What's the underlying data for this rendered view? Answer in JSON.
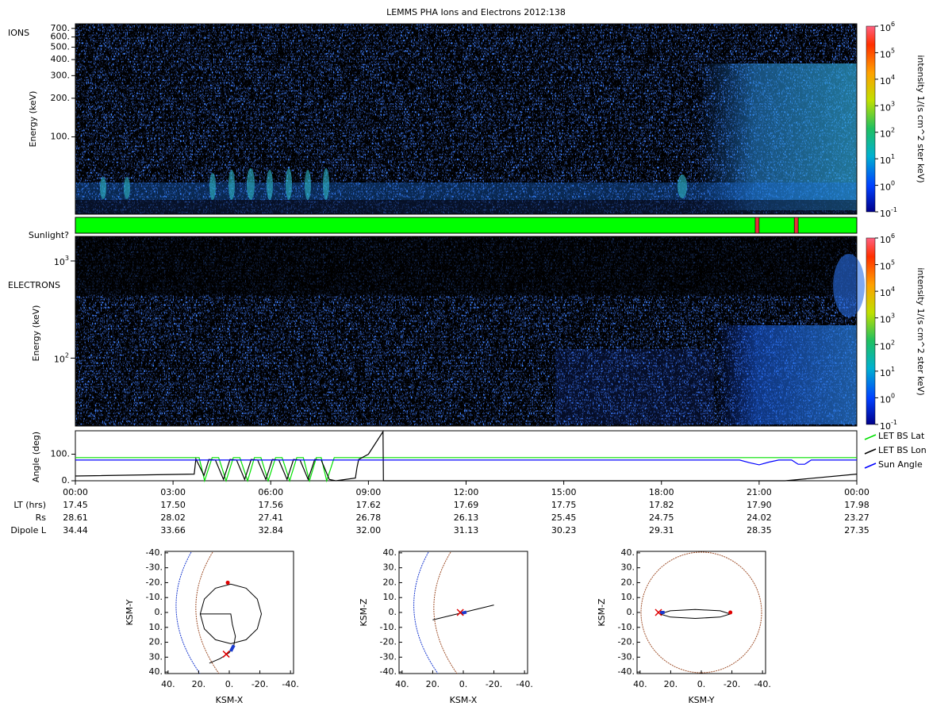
{
  "title": "LEMMS PHA Ions and Electrons  2012:138",
  "xlim": [
    0,
    24
  ],
  "time_ticks": [
    {
      "value": 0,
      "label": "00:00"
    },
    {
      "value": 3,
      "label": "03:00"
    },
    {
      "value": 6,
      "label": "06:00"
    },
    {
      "value": 9,
      "label": "09:00"
    },
    {
      "value": 12,
      "label": "12:00"
    },
    {
      "value": 15,
      "label": "15:00"
    },
    {
      "value": 18,
      "label": "18:00"
    },
    {
      "value": 21,
      "label": "21:00"
    },
    {
      "value": 24,
      "label": "00:00"
    }
  ],
  "ions": {
    "label": "IONS",
    "ylabel": "Energy (keV)",
    "ylim": [
      25,
      760
    ],
    "log_scale": true,
    "yticks": [
      {
        "value": 100,
        "label": "100."
      },
      {
        "value": 200,
        "label": "200."
      },
      {
        "value": 300,
        "label": "300."
      },
      {
        "value": 400,
        "label": "400."
      },
      {
        "value": 500,
        "label": "500."
      },
      {
        "value": 600,
        "label": "600."
      },
      {
        "value": 700,
        "label": "700."
      }
    ]
  },
  "sunlight": {
    "label": "Sunlight?",
    "color": "#00ff00",
    "eclipse_color": "#e8303a",
    "eclipses": [
      [
        20.88,
        21.0
      ],
      [
        22.08,
        22.2
      ]
    ]
  },
  "electrons": {
    "label": "ELECTRONS",
    "ylabel": "Energy (keV)",
    "ylim": [
      20,
      1790
    ],
    "log_scale": true,
    "ytick_base": "10",
    "ytick_exponents": [
      2,
      3
    ]
  },
  "colorbar": {
    "label": "intensity 1/(s cm^2 ster keV)",
    "base": "10",
    "exponents": [
      -1,
      0,
      1,
      2,
      3,
      4,
      5,
      6
    ]
  },
  "angles": {
    "ylabel": "Angle (deg)",
    "ylim": [
      0,
      188
    ],
    "yticks": [
      {
        "value": 0,
        "label": "0."
      },
      {
        "value": 100,
        "label": "100."
      }
    ],
    "series": [
      {
        "name": "LET BS Lat",
        "color": "#00e000",
        "x": [
          0,
          3.8,
          3.97,
          4.2,
          4.4,
          4.63,
          4.85,
          5.05,
          5.29,
          5.5,
          5.7,
          5.92,
          6.15,
          6.35,
          6.58,
          6.8,
          7.0,
          7.19,
          7.4,
          7.55,
          7.72,
          7.95,
          24
        ],
        "values": [
          87,
          87,
          0,
          87,
          87,
          0,
          87,
          87,
          0,
          87,
          87,
          0,
          87,
          87,
          0,
          87,
          87,
          0,
          87,
          87,
          0,
          87,
          87
        ]
      },
      {
        "name": "LET BS Lon",
        "color": "#000000",
        "x": [
          0,
          3.65,
          3.7,
          3.95,
          4.1,
          4.3,
          4.55,
          4.75,
          4.95,
          5.2,
          5.4,
          5.6,
          5.85,
          6.05,
          6.25,
          6.5,
          6.7,
          6.9,
          7.15,
          7.35,
          7.55,
          7.8,
          8.0,
          8.6,
          8.65,
          8.7,
          9.0,
          9.45,
          9.46,
          21.8,
          24
        ],
        "values": [
          18,
          25,
          82,
          20,
          80,
          78,
          5,
          80,
          78,
          5,
          80,
          78,
          5,
          80,
          78,
          5,
          80,
          78,
          5,
          80,
          78,
          5,
          0,
          10,
          50,
          80,
          100,
          185,
          0,
          0,
          25
        ]
      },
      {
        "name": "Sun Angle",
        "color": "#0000ff",
        "x": [
          0,
          20.4,
          20.7,
          21.0,
          21.3,
          21.6,
          22.0,
          22.2,
          22.4,
          22.6,
          24
        ],
        "values": [
          78,
          78,
          68,
          60,
          70,
          78,
          78,
          62,
          62,
          78,
          78
        ]
      }
    ]
  },
  "ephemeris": [
    {
      "label": "LT (hrs)",
      "values": [
        "17.45",
        "17.50",
        "17.56",
        "17.62",
        "17.69",
        "17.75",
        "17.82",
        "17.90",
        "17.98"
      ]
    },
    {
      "label": "Rs",
      "values": [
        "28.61",
        "28.02",
        "27.41",
        "26.78",
        "26.13",
        "25.45",
        "24.75",
        "24.02",
        "23.27"
      ]
    },
    {
      "label": "Dipole L",
      "values": [
        "34.44",
        "33.66",
        "32.84",
        "32.00",
        "31.13",
        "30.23",
        "29.31",
        "28.35",
        "27.35"
      ]
    }
  ],
  "orbits": [
    {
      "xlabel": "KSM-X",
      "ylabel": "KSM-Y",
      "xlim": [
        42,
        -42
      ],
      "ylim": [
        41,
        -41
      ],
      "xticks": [
        {
          "value": 40,
          "label": "40."
        },
        {
          "value": 20,
          "label": "20."
        },
        {
          "value": 0,
          "label": "0."
        },
        {
          "value": -20,
          "label": "-20."
        },
        {
          "value": -40,
          "label": "-40."
        }
      ],
      "yticks": [
        {
          "value": -40,
          "label": "-40."
        },
        {
          "value": -30,
          "label": "-30."
        },
        {
          "value": -20,
          "label": "-20."
        },
        {
          "value": -10,
          "label": "-10."
        },
        {
          "value": 0,
          "label": "0."
        },
        {
          "value": 10,
          "label": "10."
        },
        {
          "value": 20,
          "label": "20."
        },
        {
          "value": 30,
          "label": "30."
        },
        {
          "value": 40,
          "label": "40."
        }
      ],
      "path": {
        "x": [
          19,
          16.3,
          9,
          -1,
          -11,
          -18.3,
          -21,
          -18.3,
          -11,
          -1,
          9,
          16.3,
          19,
          -1,
          -2,
          -4,
          -3,
          0,
          6,
          13
        ],
        "y": [
          1,
          11,
          18.3,
          21,
          18.3,
          11,
          1,
          -9,
          -16.3,
          -19,
          -16.3,
          -9,
          1,
          1,
          8,
          16,
          22,
          27,
          31,
          34
        ]
      },
      "recent": {
        "x": [
          -1,
          -3
        ],
        "y": [
          26,
          22
        ]
      },
      "start": [
        1,
        -20
      ],
      "end": [
        2,
        28
      ]
    },
    {
      "xlabel": "KSM-X",
      "ylabel": "KSM-Z",
      "xlim": [
        42,
        -42
      ],
      "ylim": [
        -41,
        41
      ],
      "xticks": [
        {
          "value": 40,
          "label": "40."
        },
        {
          "value": 20,
          "label": "20."
        },
        {
          "value": 0,
          "label": "0."
        },
        {
          "value": -20,
          "label": "-20."
        },
        {
          "value": -40,
          "label": "-40."
        }
      ],
      "yticks": [
        {
          "value": 40,
          "label": "40."
        },
        {
          "value": 30,
          "label": "30."
        },
        {
          "value": 20,
          "label": "20."
        },
        {
          "value": 10,
          "label": "10."
        },
        {
          "value": 0,
          "label": "0."
        },
        {
          "value": -10,
          "label": "-10."
        },
        {
          "value": -20,
          "label": "-20."
        },
        {
          "value": -30,
          "label": "-30."
        },
        {
          "value": -40,
          "label": "-40."
        }
      ],
      "path": {
        "x": [
          20,
          -20
        ],
        "y": [
          -5,
          5
        ]
      },
      "recent": {
        "x": [
          1,
          -2
        ],
        "y": [
          -0.5,
          0.2
        ]
      },
      "end": [
        2,
        0
      ]
    },
    {
      "xlabel": "KSM-Y",
      "ylabel": "KSM-Z",
      "xlim": [
        42,
        -42
      ],
      "ylim": [
        -41,
        41
      ],
      "xticks": [
        {
          "value": -40,
          "label": "-40."
        },
        {
          "value": -20,
          "label": "-20."
        },
        {
          "value": 0,
          "label": "0."
        },
        {
          "value": 20,
          "label": "20."
        },
        {
          "value": 40,
          "label": "40."
        }
      ],
      "yticks": [
        {
          "value": 40,
          "label": "40."
        },
        {
          "value": 30,
          "label": "30."
        },
        {
          "value": 20,
          "label": "20."
        },
        {
          "value": 10,
          "label": "10."
        },
        {
          "value": 0,
          "label": "0."
        },
        {
          "value": -10,
          "label": "-10."
        },
        {
          "value": -20,
          "label": "-20."
        },
        {
          "value": -30,
          "label": "-30."
        },
        {
          "value": -40,
          "label": "-40."
        }
      ],
      "path": {
        "x": [
          27,
          20.3,
          4,
          -12.3,
          -19,
          -12.3,
          4,
          20.3,
          27
        ],
        "y": [
          -1,
          1.1,
          2,
          1.1,
          -1,
          -3.1,
          -4,
          -3.1,
          -1
        ]
      },
      "recent": {
        "x": [
          24,
          27
        ],
        "y": [
          0,
          0
        ]
      },
      "start": [
        -19,
        0
      ],
      "end": [
        28,
        0
      ]
    }
  ]
}
